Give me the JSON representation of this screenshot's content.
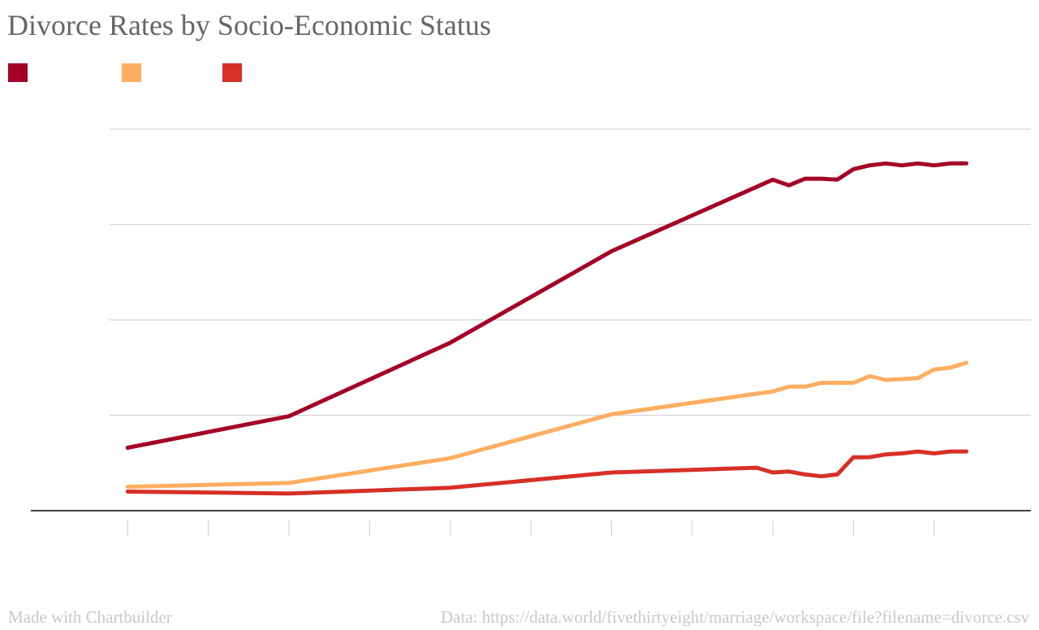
{
  "colors": {
    "title": "#666666",
    "grid": "#d4d4d4",
    "axis": "#000000",
    "footer": "#c8c8c8"
  },
  "chart_data": {
    "type": "line",
    "title": "Divorce Rates by Socio-Economic Status",
    "xlabel": "",
    "ylabel": "",
    "x": [
      1960,
      1970,
      1980,
      1990,
      2000,
      2001,
      2002,
      2003,
      2004,
      2005,
      2006,
      2007,
      2008,
      2009,
      2010,
      2011,
      2012
    ],
    "xlim": [
      1954,
      2016
    ],
    "x_ticks": [
      1960,
      1965,
      1970,
      1975,
      1980,
      1985,
      1990,
      1995,
      2000,
      2005,
      2010
    ],
    "ylim": [
      0,
      0.4
    ],
    "y_gridlines": [
      0.1,
      0.2,
      0.3,
      0.4
    ],
    "grid": true,
    "legend_position": "top-left",
    "series": [
      {
        "name": "",
        "color": "#a50026",
        "x": [
          1960,
          1970,
          1980,
          1990,
          2000,
          2001,
          2002,
          2003,
          2004,
          2005,
          2006,
          2007,
          2008,
          2009,
          2010,
          2011,
          2012
        ],
        "values": [
          0.066,
          0.099,
          0.176,
          0.272,
          0.347,
          0.341,
          0.348,
          0.348,
          0.347,
          0.358,
          0.362,
          0.364,
          0.362,
          0.364,
          0.362,
          0.364,
          0.364
        ]
      },
      {
        "name": "",
        "color": "#fdae61",
        "x": [
          1960,
          1970,
          1980,
          1990,
          2000,
          2001,
          2002,
          2003,
          2004,
          2005,
          2006,
          2007,
          2008,
          2009,
          2010,
          2011,
          2012
        ],
        "values": [
          0.025,
          0.029,
          0.055,
          0.101,
          0.125,
          0.13,
          0.13,
          0.134,
          0.134,
          0.134,
          0.141,
          0.137,
          0.138,
          0.139,
          0.148,
          0.15,
          0.155
        ]
      },
      {
        "name": "",
        "color": "#d73027",
        "x": [
          1960,
          1970,
          1980,
          1990,
          1999,
          2000,
          2001,
          2002,
          2003,
          2004,
          2005,
          2006,
          2007,
          2008,
          2009,
          2010,
          2011,
          2012
        ],
        "values": [
          0.02,
          0.018,
          0.024,
          0.04,
          0.045,
          0.04,
          0.041,
          0.038,
          0.036,
          0.038,
          0.056,
          0.056,
          0.059,
          0.06,
          0.062,
          0.06,
          0.062,
          0.062
        ]
      }
    ]
  },
  "footer": {
    "credit": "Made with Chartbuilder",
    "source": "Data: https://data.world/fivethirtyeight/marriage/workspace/file?filename=divorce.csv"
  }
}
